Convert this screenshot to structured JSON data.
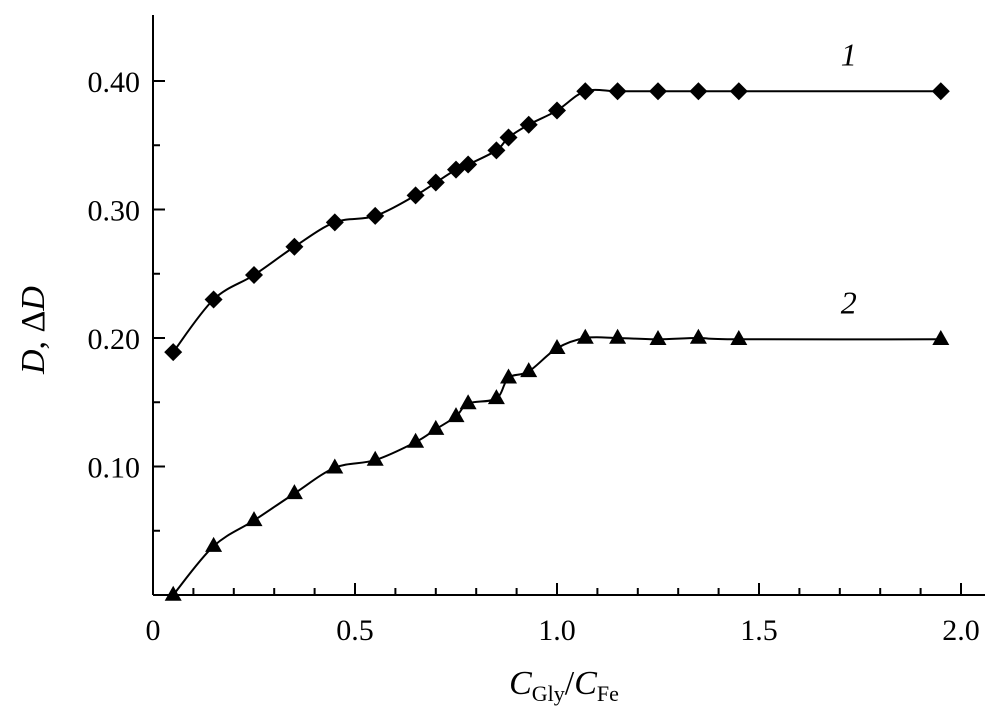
{
  "chart_data": {
    "type": "line",
    "xlabel": "C_Gly/C_Fe",
    "ylabel": "D, ΔD",
    "xlim": [
      0,
      2.0
    ],
    "ylim": [
      0,
      0.45
    ],
    "x_ticks": [
      0,
      0.5,
      1.0,
      1.5,
      2.0
    ],
    "x_tick_labels": [
      "0",
      "0.5",
      "1.0",
      "1.5",
      "2.0"
    ],
    "y_ticks": [
      0.1,
      0.2,
      0.3,
      0.4
    ],
    "y_tick_labels": [
      "0.10",
      "0.20",
      "0.30",
      "0.40"
    ],
    "axis_title": {
      "x_main_1": "C",
      "x_sub_1": "Gly",
      "x_sep": "/",
      "x_main_2": "C",
      "x_sub_2": "Fe",
      "y_var_1": "D",
      "y_sep": ", Δ",
      "y_var_2": "D"
    },
    "grid": false,
    "series": [
      {
        "label": "1",
        "marker": "diamond",
        "x": [
          0.05,
          0.15,
          0.25,
          0.35,
          0.45,
          0.55,
          0.65,
          0.7,
          0.75,
          0.78,
          0.85,
          0.88,
          0.93,
          1.0,
          1.07,
          1.15,
          1.25,
          1.35,
          1.45,
          1.95
        ],
        "y": [
          0.189,
          0.23,
          0.249,
          0.271,
          0.29,
          0.295,
          0.311,
          0.321,
          0.331,
          0.335,
          0.346,
          0.356,
          0.366,
          0.377,
          0.392,
          0.392,
          0.392,
          0.392,
          0.392,
          0.392
        ]
      },
      {
        "label": "2",
        "marker": "triangle",
        "x": [
          0.05,
          0.15,
          0.25,
          0.35,
          0.45,
          0.55,
          0.65,
          0.7,
          0.75,
          0.78,
          0.85,
          0.88,
          0.93,
          1.0,
          1.07,
          1.15,
          1.25,
          1.35,
          1.45,
          1.95
        ],
        "y": [
          0.0,
          0.038,
          0.058,
          0.079,
          0.099,
          0.105,
          0.119,
          0.129,
          0.139,
          0.149,
          0.153,
          0.169,
          0.174,
          0.192,
          0.2,
          0.2,
          0.199,
          0.2,
          0.199,
          0.199
        ]
      }
    ]
  }
}
